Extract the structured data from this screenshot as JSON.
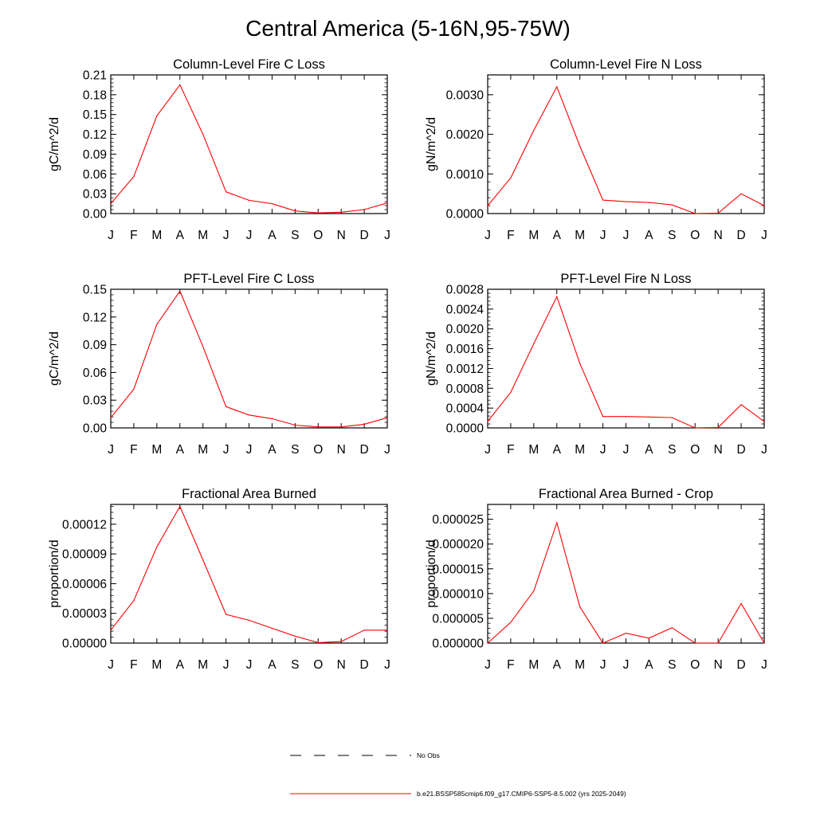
{
  "figure_title": "Central America (5-16N,95-75W)",
  "legend": {
    "items": [
      {
        "label": "No Obs",
        "style": "dashed",
        "color": "#000000"
      },
      {
        "label": "b.e21.BSSP585cmip6.f09_g17.CMIP6-SSP5-8.5.002 (yrs 2025-2049)",
        "style": "solid",
        "color": "#ff0000"
      }
    ]
  },
  "chart_data": [
    {
      "type": "line",
      "title": "Column-Level Fire C Loss",
      "ylabel": "gC/m^2/d",
      "xlabel": "",
      "categories": [
        "J",
        "F",
        "M",
        "A",
        "M",
        "J",
        "J",
        "A",
        "S",
        "O",
        "N",
        "D",
        "J"
      ],
      "ylim": [
        0,
        0.21
      ],
      "yticks": [
        "0.00",
        "0.03",
        "0.06",
        "0.09",
        "0.12",
        "0.15",
        "0.18",
        "0.21"
      ],
      "series": [
        {
          "color": "#ff0000",
          "values": [
            0.015,
            0.056,
            0.148,
            0.195,
            0.12,
            0.033,
            0.02,
            0.015,
            0.004,
            0.001,
            0.002,
            0.006,
            0.016
          ]
        }
      ]
    },
    {
      "type": "line",
      "title": "Column-Level Fire N Loss",
      "ylabel": "gN/m^2/d",
      "xlabel": "",
      "categories": [
        "J",
        "F",
        "M",
        "A",
        "M",
        "J",
        "J",
        "A",
        "S",
        "O",
        "N",
        "D",
        "J"
      ],
      "ylim": [
        0,
        0.0035
      ],
      "yticks": [
        "0.0000",
        "0.0010",
        "0.0020",
        "0.0030"
      ],
      "series": [
        {
          "color": "#ff0000",
          "values": [
            0.0002,
            0.0009,
            0.0021,
            0.0032,
            0.0017,
            0.00034,
            0.0003,
            0.00028,
            0.00022,
            0.0,
            1e-05,
            0.0005,
            0.0002
          ]
        }
      ]
    },
    {
      "type": "line",
      "title": "PFT-Level Fire C Loss",
      "ylabel": "gC/m^2/d",
      "xlabel": "",
      "categories": [
        "J",
        "F",
        "M",
        "A",
        "M",
        "J",
        "J",
        "A",
        "S",
        "O",
        "N",
        "D",
        "J"
      ],
      "ylim": [
        0,
        0.15
      ],
      "yticks": [
        "0.00",
        "0.03",
        "0.06",
        "0.09",
        "0.12",
        "0.15"
      ],
      "series": [
        {
          "color": "#ff0000",
          "values": [
            0.011,
            0.042,
            0.112,
            0.148,
            0.088,
            0.023,
            0.014,
            0.01,
            0.003,
            0.001,
            0.001,
            0.004,
            0.011
          ]
        }
      ]
    },
    {
      "type": "line",
      "title": "PFT-Level Fire N Loss",
      "ylabel": "gN/m^2/d",
      "xlabel": "",
      "categories": [
        "J",
        "F",
        "M",
        "A",
        "M",
        "J",
        "J",
        "A",
        "S",
        "O",
        "N",
        "D",
        "J"
      ],
      "ylim": [
        0,
        0.0028
      ],
      "yticks": [
        "0.0000",
        "0.0004",
        "0.0008",
        "0.0012",
        "0.0016",
        "0.0020",
        "0.0024",
        "0.0028"
      ],
      "series": [
        {
          "color": "#ff0000",
          "values": [
            0.00013,
            0.00072,
            0.0017,
            0.00265,
            0.0013,
            0.00023,
            0.00023,
            0.00022,
            0.00021,
            0.0,
            1e-05,
            0.00047,
            0.00013
          ]
        }
      ]
    },
    {
      "type": "line",
      "title": "Fractional Area Burned",
      "ylabel": "proportion/d",
      "xlabel": "",
      "categories": [
        "J",
        "F",
        "M",
        "A",
        "M",
        "J",
        "J",
        "A",
        "S",
        "O",
        "N",
        "D",
        "J"
      ],
      "ylim": [
        0,
        0.00014
      ],
      "yticks": [
        "0.00000",
        "0.00003",
        "0.00006",
        "0.00009",
        "0.00012"
      ],
      "series": [
        {
          "color": "#ff0000",
          "values": [
            1.3e-05,
            4.3e-05,
            9.7e-05,
            0.000138,
            8.4e-05,
            2.9e-05,
            2.3e-05,
            1.5e-05,
            7e-06,
            5e-07,
            1.5e-06,
            1.3e-05,
            1.3e-05
          ]
        }
      ]
    },
    {
      "type": "line",
      "title": "Fractional Area Burned - Crop",
      "ylabel": "proportion/d",
      "xlabel": "",
      "categories": [
        "J",
        "F",
        "M",
        "A",
        "M",
        "J",
        "J",
        "A",
        "S",
        "O",
        "N",
        "D",
        "J"
      ],
      "ylim": [
        0,
        2.8e-05
      ],
      "yticks": [
        "0.000000",
        "0.000005",
        "0.000010",
        "0.000015",
        "0.000020",
        "0.000025"
      ],
      "series": [
        {
          "color": "#ff0000",
          "values": [
            0.0,
            4.2e-06,
            1.05e-05,
            2.43e-05,
            7.3e-06,
            0.0,
            2e-06,
            1e-06,
            3.1e-06,
            0.0,
            0.0,
            8e-06,
            0.0
          ]
        }
      ]
    }
  ]
}
